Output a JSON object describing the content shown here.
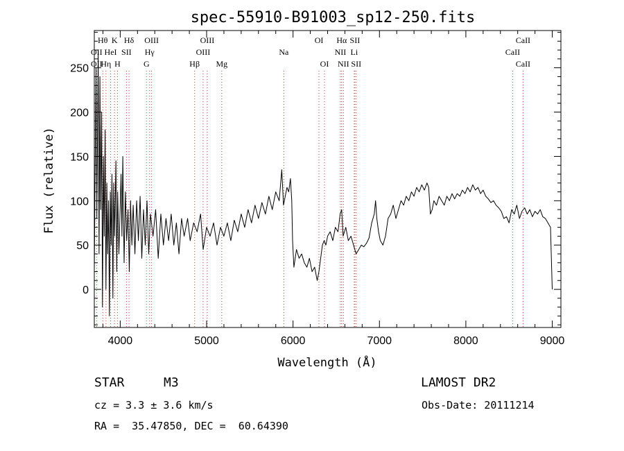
{
  "chart_data": {
    "type": "line",
    "title": "spec-55910-B91003_sp12-250.fits",
    "xlabel": "Wavelength (Å)",
    "ylabel": "Flux (relative)",
    "xlim": [
      3700,
      9100
    ],
    "ylim": [
      -43,
      292
    ],
    "x_ticks": [
      4000,
      5000,
      6000,
      7000,
      8000,
      9000
    ],
    "y_ticks": [
      0,
      50,
      100,
      150,
      200,
      250
    ],
    "series": [
      {
        "points": [
          [
            3700,
            20
          ],
          [
            3720,
            250
          ],
          [
            3730,
            80
          ],
          [
            3745,
            270
          ],
          [
            3755,
            40
          ],
          [
            3765,
            240
          ],
          [
            3775,
            90
          ],
          [
            3785,
            200
          ],
          [
            3795,
            -20
          ],
          [
            3805,
            150
          ],
          [
            3815,
            60
          ],
          [
            3825,
            180
          ],
          [
            3835,
            0
          ],
          [
            3845,
            120
          ],
          [
            3855,
            40
          ],
          [
            3865,
            100
          ],
          [
            3875,
            -30
          ],
          [
            3885,
            110
          ],
          [
            3895,
            50
          ],
          [
            3905,
            130
          ],
          [
            3915,
            -10
          ],
          [
            3925,
            120
          ],
          [
            3935,
            60
          ],
          [
            3950,
            145
          ],
          [
            3960,
            20
          ],
          [
            3970,
            110
          ],
          [
            3985,
            40
          ],
          [
            4000,
            95
          ],
          [
            4010,
            130
          ],
          [
            4020,
            60
          ],
          [
            4030,
            150
          ],
          [
            4045,
            30
          ],
          [
            4060,
            110
          ],
          [
            4075,
            55
          ],
          [
            4090,
            90
          ],
          [
            4105,
            20
          ],
          [
            4120,
            100
          ],
          [
            4135,
            50
          ],
          [
            4150,
            95
          ],
          [
            4170,
            40
          ],
          [
            4190,
            100
          ],
          [
            4210,
            55
          ],
          [
            4230,
            105
          ],
          [
            4250,
            35
          ],
          [
            4270,
            90
          ],
          [
            4290,
            50
          ],
          [
            4310,
            100
          ],
          [
            4330,
            40
          ],
          [
            4350,
            85
          ],
          [
            4380,
            60
          ],
          [
            4410,
            90
          ],
          [
            4440,
            35
          ],
          [
            4470,
            85
          ],
          [
            4500,
            50
          ],
          [
            4530,
            80
          ],
          [
            4560,
            55
          ],
          [
            4590,
            85
          ],
          [
            4620,
            50
          ],
          [
            4650,
            75
          ],
          [
            4680,
            40
          ],
          [
            4710,
            80
          ],
          [
            4740,
            60
          ],
          [
            4780,
            80
          ],
          [
            4810,
            55
          ],
          [
            4850,
            75
          ],
          [
            4890,
            65
          ],
          [
            4930,
            85
          ],
          [
            4960,
            45
          ],
          [
            5000,
            70
          ],
          [
            5040,
            60
          ],
          [
            5080,
            75
          ],
          [
            5120,
            50
          ],
          [
            5160,
            70
          ],
          [
            5200,
            60
          ],
          [
            5240,
            75
          ],
          [
            5280,
            55
          ],
          [
            5320,
            78
          ],
          [
            5360,
            65
          ],
          [
            5400,
            85
          ],
          [
            5440,
            70
          ],
          [
            5480,
            90
          ],
          [
            5520,
            75
          ],
          [
            5560,
            95
          ],
          [
            5600,
            80
          ],
          [
            5640,
            98
          ],
          [
            5680,
            85
          ],
          [
            5720,
            105
          ],
          [
            5760,
            90
          ],
          [
            5800,
            110
          ],
          [
            5840,
            100
          ],
          [
            5870,
            135
          ],
          [
            5890,
            95
          ],
          [
            5910,
            105
          ],
          [
            5930,
            115
          ],
          [
            5950,
            110
          ],
          [
            5970,
            125
          ],
          [
            5985,
            100
          ],
          [
            5995,
            55
          ],
          [
            6010,
            25
          ],
          [
            6040,
            45
          ],
          [
            6070,
            35
          ],
          [
            6100,
            40
          ],
          [
            6130,
            30
          ],
          [
            6160,
            25
          ],
          [
            6190,
            35
          ],
          [
            6220,
            20
          ],
          [
            6250,
            25
          ],
          [
            6280,
            10
          ],
          [
            6300,
            20
          ],
          [
            6320,
            35
          ],
          [
            6340,
            50
          ],
          [
            6360,
            55
          ],
          [
            6380,
            50
          ],
          [
            6400,
            60
          ],
          [
            6430,
            65
          ],
          [
            6460,
            55
          ],
          [
            6490,
            70
          ],
          [
            6520,
            65
          ],
          [
            6545,
            85
          ],
          [
            6563,
            90
          ],
          [
            6580,
            60
          ],
          [
            6610,
            70
          ],
          [
            6640,
            55
          ],
          [
            6670,
            60
          ],
          [
            6700,
            50
          ],
          [
            6730,
            40
          ],
          [
            6760,
            45
          ],
          [
            6790,
            50
          ],
          [
            6820,
            48
          ],
          [
            6850,
            52
          ],
          [
            6880,
            58
          ],
          [
            6910,
            75
          ],
          [
            6940,
            85
          ],
          [
            6955,
            100
          ],
          [
            6970,
            80
          ],
          [
            6990,
            65
          ],
          [
            7010,
            55
          ],
          [
            7040,
            50
          ],
          [
            7070,
            60
          ],
          [
            7100,
            80
          ],
          [
            7130,
            85
          ],
          [
            7160,
            95
          ],
          [
            7190,
            80
          ],
          [
            7220,
            90
          ],
          [
            7250,
            100
          ],
          [
            7280,
            95
          ],
          [
            7310,
            105
          ],
          [
            7340,
            100
          ],
          [
            7370,
            110
          ],
          [
            7400,
            105
          ],
          [
            7430,
            115
          ],
          [
            7460,
            110
          ],
          [
            7490,
            118
          ],
          [
            7520,
            112
          ],
          [
            7550,
            120
          ],
          [
            7570,
            115
          ],
          [
            7590,
            85
          ],
          [
            7610,
            90
          ],
          [
            7630,
            100
          ],
          [
            7660,
            95
          ],
          [
            7690,
            105
          ],
          [
            7720,
            100
          ],
          [
            7750,
            95
          ],
          [
            7780,
            105
          ],
          [
            7810,
            100
          ],
          [
            7840,
            108
          ],
          [
            7870,
            102
          ],
          [
            7900,
            108
          ],
          [
            7930,
            105
          ],
          [
            7960,
            112
          ],
          [
            7990,
            108
          ],
          [
            8020,
            115
          ],
          [
            8050,
            110
          ],
          [
            8080,
            118
          ],
          [
            8110,
            112
          ],
          [
            8140,
            115
          ],
          [
            8170,
            108
          ],
          [
            8200,
            112
          ],
          [
            8230,
            105
          ],
          [
            8260,
            102
          ],
          [
            8290,
            98
          ],
          [
            8320,
            100
          ],
          [
            8350,
            95
          ],
          [
            8380,
            92
          ],
          [
            8410,
            88
          ],
          [
            8440,
            80
          ],
          [
            8470,
            82
          ],
          [
            8500,
            75
          ],
          [
            8530,
            90
          ],
          [
            8560,
            85
          ],
          [
            8590,
            95
          ],
          [
            8620,
            80
          ],
          [
            8650,
            88
          ],
          [
            8680,
            92
          ],
          [
            8710,
            85
          ],
          [
            8740,
            90
          ],
          [
            8770,
            82
          ],
          [
            8800,
            88
          ],
          [
            8830,
            85
          ],
          [
            8860,
            90
          ],
          [
            8890,
            82
          ],
          [
            8920,
            80
          ],
          [
            8950,
            75
          ],
          [
            8980,
            70
          ],
          [
            9000,
            0
          ]
        ]
      }
    ],
    "spectral_lines": [
      {
        "label": "Hθ",
        "x": 3798,
        "row": 1
      },
      {
        "label": "K",
        "x": 3934,
        "row": 1
      },
      {
        "label": "Hδ",
        "x": 4102,
        "row": 1
      },
      {
        "label": "OIII",
        "x": 4363,
        "row": 1
      },
      {
        "label": "OIII",
        "x": 5007,
        "row": 1
      },
      {
        "label": "OI",
        "x": 6300,
        "row": 1
      },
      {
        "label": "Hα",
        "x": 6563,
        "row": 1
      },
      {
        "label": "SII",
        "x": 6716,
        "row": 1
      },
      {
        "label": "CaII",
        "x": 8662,
        "row": 1
      },
      {
        "label": "OII",
        "x": 3727,
        "row": 2
      },
      {
        "label": "HeI",
        "x": 3889,
        "row": 2
      },
      {
        "label": "SII",
        "x": 4072,
        "row": 2
      },
      {
        "label": "Hγ",
        "x": 4340,
        "row": 2
      },
      {
        "label": "OIII",
        "x": 4959,
        "row": 2
      },
      {
        "label": "Na",
        "x": 5893,
        "row": 2
      },
      {
        "label": "NII",
        "x": 6548,
        "row": 2
      },
      {
        "label": "Li",
        "x": 6708,
        "row": 2
      },
      {
        "label": "CaII",
        "x": 8542,
        "row": 2
      },
      {
        "label": "OII",
        "x": 3727,
        "row": 3
      },
      {
        "label": "Hη",
        "x": 3835,
        "row": 3
      },
      {
        "label": "H",
        "x": 3968,
        "row": 3
      },
      {
        "label": "G",
        "x": 4304,
        "row": 3
      },
      {
        "label": "Hβ",
        "x": 4861,
        "row": 3
      },
      {
        "label": "Mg",
        "x": 5175,
        "row": 3
      },
      {
        "label": "OI",
        "x": 6364,
        "row": 3
      },
      {
        "label": "NII",
        "x": 6583,
        "row": 3
      },
      {
        "label": "SII",
        "x": 6731,
        "row": 3
      },
      {
        "label": "CaII",
        "x": 8662,
        "row": 3
      }
    ]
  },
  "info": {
    "object_class": "STAR",
    "subclass": "M3",
    "survey": "LAMOST DR2",
    "cz": "cz = 3.3 ± 3.6 km/s",
    "obs_date": "Obs-Date: 20111214",
    "coords": "RA =  35.47850, DEC =  60.64390"
  }
}
